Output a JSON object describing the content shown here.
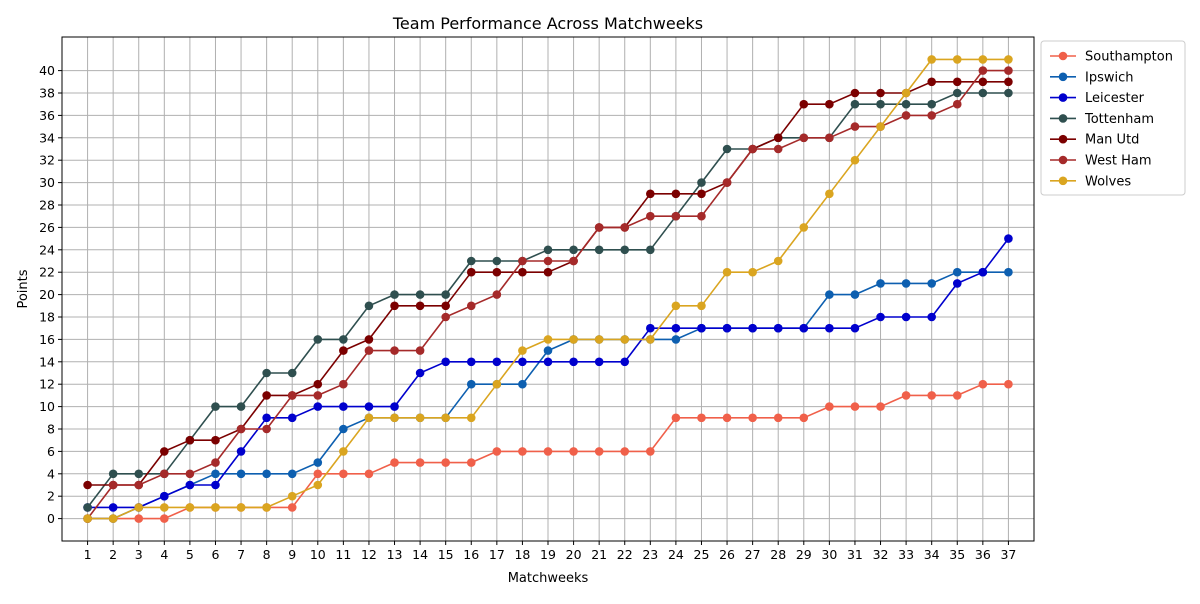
{
  "chart_data": {
    "type": "line",
    "title": "Team Performance Across Matchweeks",
    "xlabel": "Matchweeks",
    "ylabel": "Points",
    "xlim": [
      0,
      38
    ],
    "ylim": [
      -2,
      43
    ],
    "x_ticks": [
      1,
      2,
      3,
      4,
      5,
      6,
      7,
      8,
      9,
      10,
      11,
      12,
      13,
      14,
      15,
      16,
      17,
      18,
      19,
      20,
      21,
      22,
      23,
      24,
      25,
      26,
      27,
      28,
      29,
      30,
      31,
      32,
      33,
      34,
      35,
      36,
      37
    ],
    "y_ticks": [
      0,
      2,
      4,
      6,
      8,
      10,
      12,
      14,
      16,
      18,
      20,
      22,
      24,
      26,
      28,
      30,
      32,
      34,
      36,
      38,
      40
    ],
    "grid": true,
    "legend_position": "outside-right-top",
    "x": [
      1,
      2,
      3,
      4,
      5,
      6,
      7,
      8,
      9,
      10,
      11,
      12,
      13,
      14,
      15,
      16,
      17,
      18,
      19,
      20,
      21,
      22,
      23,
      24,
      25,
      26,
      27,
      28,
      29,
      30,
      31,
      32,
      33,
      34,
      35,
      36,
      37
    ],
    "series": [
      {
        "name": "Southampton",
        "color": "#f0604a",
        "values": [
          0,
          0,
          0,
          0,
          1,
          1,
          1,
          1,
          1,
          4,
          4,
          4,
          5,
          5,
          5,
          5,
          6,
          6,
          6,
          6,
          6,
          6,
          6,
          9,
          9,
          9,
          9,
          9,
          9,
          10,
          10,
          10,
          11,
          11,
          11,
          12,
          12
        ]
      },
      {
        "name": "Ipswich",
        "color": "#0d5fb0",
        "values": [
          0,
          0,
          1,
          2,
          3,
          4,
          4,
          4,
          4,
          5,
          8,
          9,
          9,
          9,
          9,
          12,
          12,
          12,
          15,
          16,
          16,
          16,
          16,
          16,
          17,
          17,
          17,
          17,
          17,
          20,
          20,
          21,
          21,
          21,
          22,
          22,
          22
        ]
      },
      {
        "name": "Leicester",
        "color": "#0000cd",
        "values": [
          1,
          1,
          1,
          2,
          3,
          3,
          6,
          9,
          9,
          10,
          10,
          10,
          10,
          13,
          14,
          14,
          14,
          14,
          14,
          14,
          14,
          14,
          17,
          17,
          17,
          17,
          17,
          17,
          17,
          17,
          17,
          18,
          18,
          18,
          21,
          22,
          25
        ]
      },
      {
        "name": "Tottenham",
        "color": "#2f4f4f",
        "values": [
          1,
          4,
          4,
          4,
          7,
          10,
          10,
          13,
          13,
          16,
          16,
          19,
          20,
          20,
          20,
          23,
          23,
          23,
          24,
          24,
          24,
          24,
          24,
          27,
          30,
          33,
          33,
          34,
          34,
          34,
          37,
          37,
          37,
          37,
          38,
          38,
          38
        ]
      },
      {
        "name": "Man Utd",
        "color": "#7b0000",
        "values": [
          3,
          3,
          3,
          6,
          7,
          7,
          8,
          11,
          11,
          12,
          15,
          16,
          19,
          19,
          19,
          22,
          22,
          22,
          22,
          23,
          26,
          26,
          29,
          29,
          29,
          30,
          33,
          34,
          37,
          37,
          38,
          38,
          38,
          39,
          39,
          39,
          39
        ]
      },
      {
        "name": "West Ham",
        "color": "#a52a2a",
        "values": [
          0,
          3,
          3,
          4,
          4,
          5,
          8,
          8,
          11,
          11,
          12,
          15,
          15,
          15,
          18,
          19,
          20,
          23,
          23,
          23,
          26,
          26,
          27,
          27,
          27,
          30,
          33,
          33,
          34,
          34,
          35,
          35,
          36,
          36,
          37,
          40,
          40
        ]
      },
      {
        "name": "Wolves",
        "color": "#daa520",
        "values": [
          0,
          0,
          1,
          1,
          1,
          1,
          1,
          1,
          2,
          3,
          6,
          9,
          9,
          9,
          9,
          9,
          12,
          15,
          16,
          16,
          16,
          16,
          16,
          19,
          19,
          22,
          22,
          23,
          26,
          29,
          32,
          35,
          38,
          41,
          41,
          41,
          41
        ]
      }
    ]
  }
}
